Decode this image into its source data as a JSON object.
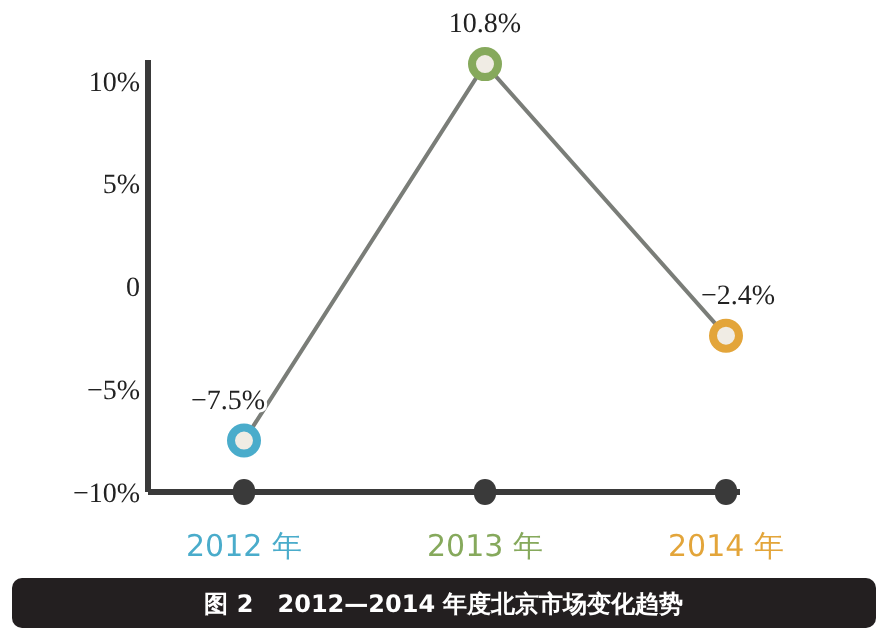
{
  "chart_data": {
    "type": "line",
    "title": "图 2　2012—2014 年度北京市场变化趋势",
    "categories": [
      "2012 年",
      "2013 年",
      "2014 年"
    ],
    "series": [
      {
        "color": "#7a7d78",
        "colors": [
          "#4aaccb",
          "#86a95c",
          "#e3a53a"
        ],
        "values": [
          -7.5,
          10.8,
          -2.4
        ],
        "value_labels": [
          "−7.5%",
          "10.8%",
          "−2.4%"
        ]
      }
    ],
    "ylim": [
      -10,
      11
    ],
    "yticks": [
      {
        "value": -10,
        "label": "−10%"
      },
      {
        "value": -5,
        "label": "−5%"
      },
      0,
      {
        "value": 5,
        "label": "5%"
      },
      {
        "value": 10,
        "label": "10%"
      }
    ],
    "marker": "circle",
    "grid": false
  }
}
